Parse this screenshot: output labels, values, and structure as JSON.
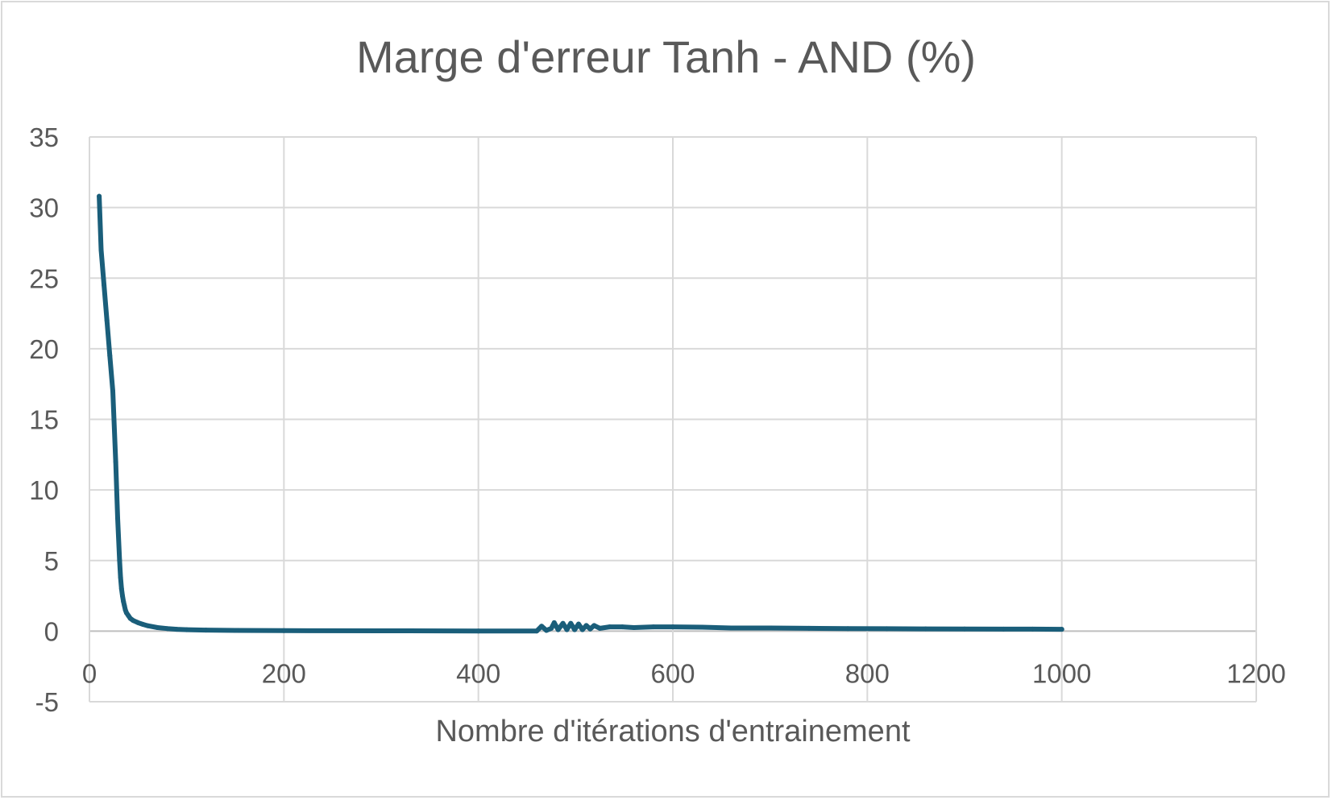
{
  "chart_data": {
    "type": "scatter",
    "title": "Marge d'erreur Tanh - AND (%)",
    "xlabel": "Nombre d'itérations d'entrainement",
    "ylabel": "",
    "xlim": [
      0,
      1200
    ],
    "ylim": [
      -5,
      35
    ],
    "x_ticks": [
      0,
      200,
      400,
      600,
      800,
      1000,
      1200
    ],
    "y_ticks": [
      -5,
      0,
      5,
      10,
      15,
      20,
      25,
      30,
      35
    ],
    "grid": true,
    "legend": "none",
    "series_color": "#1a5e7a",
    "series": [
      {
        "x": [
          10,
          12,
          15,
          18,
          21,
          24,
          27,
          29,
          31,
          32,
          33,
          34,
          35,
          36,
          37,
          38,
          40,
          42,
          45,
          50,
          55,
          60,
          70,
          80,
          90,
          100,
          120,
          150,
          200,
          300,
          400,
          460,
          465,
          470,
          475,
          478,
          482,
          487,
          491,
          495,
          499,
          503,
          507,
          511,
          515,
          519,
          525,
          535,
          548,
          560,
          580,
          600,
          630,
          660,
          700,
          740,
          780,
          820,
          860,
          900,
          940,
          970,
          1000
        ],
        "y": [
          30.8,
          27,
          24.5,
          22,
          19.5,
          17,
          12,
          8,
          5,
          3.8,
          3,
          2.5,
          2.1,
          1.8,
          1.5,
          1.3,
          1.1,
          0.9,
          0.75,
          0.6,
          0.48,
          0.38,
          0.25,
          0.18,
          0.13,
          0.1,
          0.07,
          0.05,
          0.03,
          0.02,
          0.01,
          0.01,
          0.35,
          0.05,
          0.2,
          0.6,
          0.1,
          0.55,
          0.1,
          0.55,
          0.1,
          0.5,
          0.1,
          0.4,
          0.15,
          0.4,
          0.2,
          0.3,
          0.3,
          0.25,
          0.3,
          0.3,
          0.28,
          0.22,
          0.22,
          0.2,
          0.18,
          0.17,
          0.16,
          0.15,
          0.14,
          0.14,
          0.13
        ]
      }
    ]
  }
}
